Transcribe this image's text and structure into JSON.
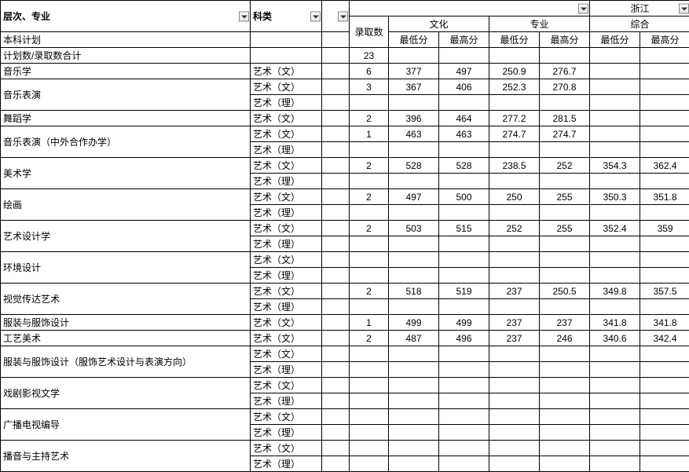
{
  "headers": {
    "major": "层次、专业",
    "category": "科类",
    "province_group": "浙江",
    "admit": "录取数",
    "culture_group": "文化",
    "prof_group": "专业",
    "comp_group": "综合",
    "min": "最低分",
    "max": "最高分"
  },
  "cat": {
    "wen": "艺术（文）",
    "li": "艺术（理）"
  },
  "plan": {
    "ugp": "本科计划",
    "total_label": "计划数/录取数合计",
    "total_admit": "23"
  },
  "rows": [
    {
      "major": "音乐学",
      "cat": "wen",
      "admit": "6",
      "cmin": "377",
      "cmax": "497",
      "pmin": "250.9",
      "pmax": "276.7",
      "zmin": "",
      "zmax": ""
    },
    {
      "major": "音乐表演",
      "span": 2,
      "cat": "wen",
      "admit": "3",
      "cmin": "367",
      "cmax": "406",
      "pmin": "252.3",
      "pmax": "270.8",
      "zmin": "",
      "zmax": ""
    },
    {
      "cat": "li"
    },
    {
      "major": "舞蹈学",
      "cat": "wen",
      "admit": "2",
      "cmin": "396",
      "cmax": "464",
      "pmin": "277.2",
      "pmax": "281.5",
      "zmin": "",
      "zmax": ""
    },
    {
      "major": "音乐表演（中外合作办学）",
      "span": 2,
      "cat": "wen",
      "admit": "1",
      "cmin": "463",
      "cmax": "463",
      "pmin": "274.7",
      "pmax": "274.7",
      "zmin": "",
      "zmax": ""
    },
    {
      "cat": "li"
    },
    {
      "major": "美术学",
      "span": 2,
      "cat": "wen",
      "admit": "2",
      "cmin": "528",
      "cmax": "528",
      "pmin": "238.5",
      "pmax": "252",
      "zmin": "354.3",
      "zmax": "362.4"
    },
    {
      "cat": "li"
    },
    {
      "major": "绘画",
      "span": 2,
      "cat": "wen",
      "admit": "2",
      "cmin": "497",
      "cmax": "500",
      "pmin": "250",
      "pmax": "255",
      "zmin": "350.3",
      "zmax": "351.8"
    },
    {
      "cat": "li"
    },
    {
      "major": "艺术设计学",
      "span": 2,
      "cat": "wen",
      "admit": "2",
      "cmin": "503",
      "cmax": "515",
      "pmin": "252",
      "pmax": "255",
      "zmin": "352.4",
      "zmax": "359"
    },
    {
      "cat": "li"
    },
    {
      "major": "环境设计",
      "span": 2,
      "cat": "wen"
    },
    {
      "cat": "li"
    },
    {
      "major": "视觉传达艺术",
      "span": 2,
      "cat": "wen",
      "admit": "2",
      "cmin": "518",
      "cmax": "519",
      "pmin": "237",
      "pmax": "250.5",
      "zmin": "349.8",
      "zmax": "357.5"
    },
    {
      "cat": "li"
    },
    {
      "major": "服装与服饰设计",
      "cat": "wen",
      "admit": "1",
      "cmin": "499",
      "cmax": "499",
      "pmin": "237",
      "pmax": "237",
      "zmin": "341.8",
      "zmax": "341.8"
    },
    {
      "major": "工艺美术",
      "cat": "wen",
      "admit": "2",
      "cmin": "487",
      "cmax": "496",
      "pmin": "237",
      "pmax": "246",
      "zmin": "340.6",
      "zmax": "342.4"
    },
    {
      "major": "服装与服饰设计（服饰艺术设计与表演方向）",
      "span": 2,
      "cat": "wen"
    },
    {
      "cat": "li"
    },
    {
      "major": "戏剧影视文学",
      "span": 2,
      "cat": "wen"
    },
    {
      "cat": "li"
    },
    {
      "major": "广播电视编导",
      "span": 2,
      "cat": "wen"
    },
    {
      "cat": "li"
    },
    {
      "major": "播音与主持艺术",
      "span": 2,
      "cat": "wen"
    },
    {
      "cat": "li"
    }
  ]
}
